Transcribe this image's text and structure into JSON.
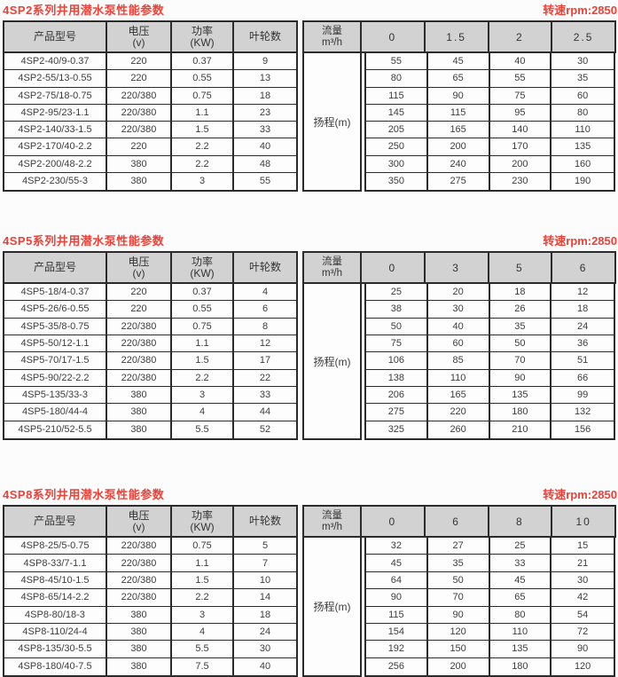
{
  "colors": {
    "title_red": "#ee4137",
    "header_bg": "#d2d2d2",
    "border_dark": "#2b2b2b",
    "row_bg": "#fdfdfd",
    "page_bg": "#fcfcfc",
    "text": "#3d3d3d"
  },
  "column_headers": {
    "model": "产品型号",
    "voltage_l1": "电压",
    "voltage_l2": "(v)",
    "power_l1": "功率",
    "power_l2": "(KW)",
    "impellers": "叶轮数",
    "flow_l1": "流量",
    "flow_l2": "m³/h",
    "head": "扬程(m)"
  },
  "tables": [
    {
      "series": "4SP2",
      "title": "4SP2系列井用潜水泵性能参数",
      "rpm": "转速rpm:2850",
      "flow_values": [
        "0",
        "1.5",
        "2",
        "2.5"
      ],
      "rows": [
        {
          "model": "4SP2-40/9-0.37",
          "voltage": "220",
          "power": "0.37",
          "impellers": "9",
          "heads": [
            "55",
            "45",
            "40",
            "30"
          ]
        },
        {
          "model": "4SP2-55/13-0.55",
          "voltage": "220",
          "power": "0.55",
          "impellers": "13",
          "heads": [
            "80",
            "65",
            "55",
            "35"
          ]
        },
        {
          "model": "4SP2-75/18-0.75",
          "voltage": "220/380",
          "power": "0.75",
          "impellers": "18",
          "heads": [
            "115",
            "90",
            "75",
            "60"
          ]
        },
        {
          "model": "4SP2-95/23-1.1",
          "voltage": "220/380",
          "power": "1.1",
          "impellers": "23",
          "heads": [
            "145",
            "115",
            "95",
            "80"
          ]
        },
        {
          "model": "4SP2-140/33-1.5",
          "voltage": "220/380",
          "power": "1.5",
          "impellers": "33",
          "heads": [
            "205",
            "165",
            "140",
            "110"
          ]
        },
        {
          "model": "4SP2-170/40-2.2",
          "voltage": "220",
          "power": "2.2",
          "impellers": "40",
          "heads": [
            "250",
            "200",
            "170",
            "135"
          ]
        },
        {
          "model": "4SP2-200/48-2.2",
          "voltage": "380",
          "power": "2.2",
          "impellers": "48",
          "heads": [
            "300",
            "240",
            "200",
            "160"
          ]
        },
        {
          "model": "4SP2-230/55-3",
          "voltage": "380",
          "power": "3",
          "impellers": "55",
          "heads": [
            "350",
            "275",
            "230",
            "190"
          ]
        }
      ]
    },
    {
      "series": "4SP5",
      "title": "4SP5系列井用潜水泵性能参数",
      "rpm": "转速rpm:2850",
      "flow_values": [
        "0",
        "3",
        "5",
        "6"
      ],
      "rows": [
        {
          "model": "4SP5-18/4-0.37",
          "voltage": "220",
          "power": "0.37",
          "impellers": "4",
          "heads": [
            "25",
            "20",
            "18",
            "12"
          ]
        },
        {
          "model": "4SP5-26/6-0.55",
          "voltage": "220",
          "power": "0.55",
          "impellers": "6",
          "heads": [
            "38",
            "30",
            "26",
            "18"
          ]
        },
        {
          "model": "4SP5-35/8-0.75",
          "voltage": "220/380",
          "power": "0.75",
          "impellers": "8",
          "heads": [
            "50",
            "40",
            "35",
            "24"
          ]
        },
        {
          "model": "4SP5-50/12-1.1",
          "voltage": "220/380",
          "power": "1.1",
          "impellers": "12",
          "heads": [
            "75",
            "60",
            "50",
            "36"
          ]
        },
        {
          "model": "4SP5-70/17-1.5",
          "voltage": "220/380",
          "power": "1.5",
          "impellers": "17",
          "heads": [
            "106",
            "85",
            "70",
            "51"
          ]
        },
        {
          "model": "4SP5-90/22-2.2",
          "voltage": "220/380",
          "power": "2.2",
          "impellers": "22",
          "heads": [
            "138",
            "110",
            "90",
            "66"
          ]
        },
        {
          "model": "4SP5-135/33-3",
          "voltage": "380",
          "power": "3",
          "impellers": "33",
          "heads": [
            "206",
            "165",
            "135",
            "99"
          ]
        },
        {
          "model": "4SP5-180/44-4",
          "voltage": "380",
          "power": "4",
          "impellers": "44",
          "heads": [
            "275",
            "220",
            "180",
            "132"
          ]
        },
        {
          "model": "4SP5-210/52-5.5",
          "voltage": "380",
          "power": "5.5",
          "impellers": "52",
          "heads": [
            "325",
            "260",
            "210",
            "156"
          ]
        }
      ]
    },
    {
      "series": "4SP8",
      "title": "4SP8系列井用潜水泵性能参数",
      "rpm": "转速rpm:2850",
      "flow_values": [
        "0",
        "6",
        "8",
        "10"
      ],
      "rows": [
        {
          "model": "4SP8-25/5-0.75",
          "voltage": "220/380",
          "power": "0.75",
          "impellers": "5",
          "heads": [
            "32",
            "27",
            "25",
            "15"
          ]
        },
        {
          "model": "4SP8-33/7-1.1",
          "voltage": "220/380",
          "power": "1.1",
          "impellers": "7",
          "heads": [
            "45",
            "35",
            "33",
            "21"
          ]
        },
        {
          "model": "4SP8-45/10-1.5",
          "voltage": "220/380",
          "power": "1.5",
          "impellers": "10",
          "heads": [
            "64",
            "50",
            "45",
            "30"
          ]
        },
        {
          "model": "4SP8-65/14-2.2",
          "voltage": "220/380",
          "power": "2.2",
          "impellers": "14",
          "heads": [
            "90",
            "70",
            "65",
            "42"
          ]
        },
        {
          "model": "4SP8-80/18-3",
          "voltage": "380",
          "power": "3",
          "impellers": "18",
          "heads": [
            "115",
            "90",
            "80",
            "54"
          ]
        },
        {
          "model": "4SP8-110/24-4",
          "voltage": "380",
          "power": "4",
          "impellers": "24",
          "heads": [
            "154",
            "120",
            "110",
            "72"
          ]
        },
        {
          "model": "4SP8-135/30-5.5",
          "voltage": "380",
          "power": "5.5",
          "impellers": "30",
          "heads": [
            "192",
            "150",
            "135",
            "90"
          ]
        },
        {
          "model": "4SP8-180/40-7.5",
          "voltage": "380",
          "power": "7.5",
          "impellers": "40",
          "heads": [
            "256",
            "200",
            "180",
            "120"
          ]
        }
      ]
    }
  ]
}
